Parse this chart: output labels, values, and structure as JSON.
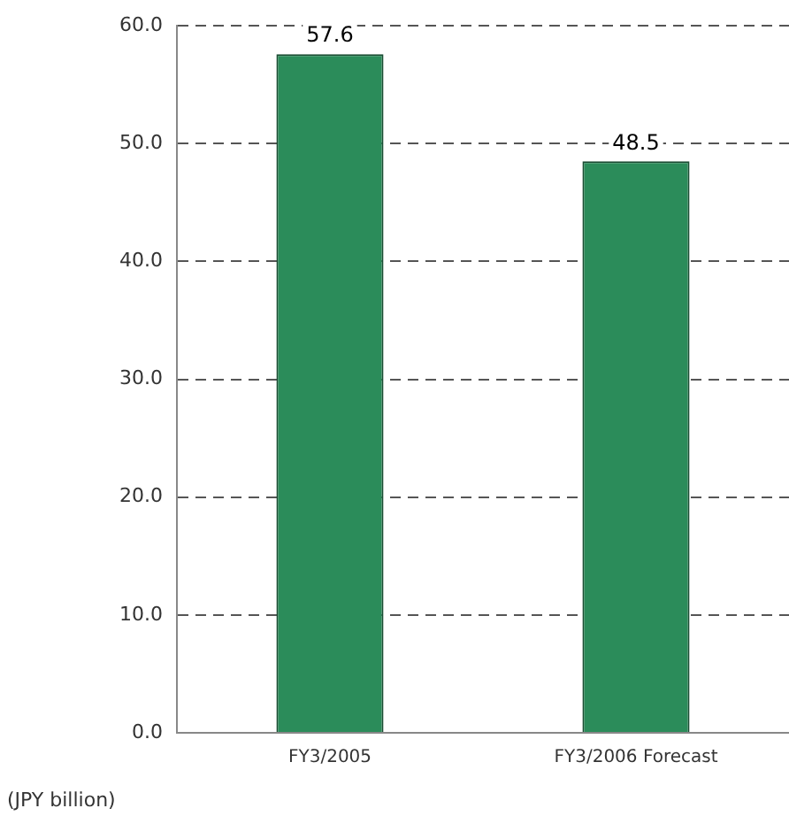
{
  "chart_data": {
    "type": "bar",
    "categories": [
      "FY3/2005",
      "FY3/2006 Forecast"
    ],
    "values": [
      57.6,
      48.5
    ],
    "color": "#2b8c5a",
    "ylabel": "(JPY billion)",
    "ylim": [
      0,
      60
    ],
    "yticks": [
      {
        "value": 0,
        "label": "0.0"
      },
      {
        "value": 10,
        "label": "10.0"
      },
      {
        "value": 20,
        "label": "20.0"
      },
      {
        "value": 30,
        "label": "30.0"
      },
      {
        "value": 40,
        "label": "40.0"
      },
      {
        "value": 50,
        "label": "50.0"
      },
      {
        "value": 60,
        "label": "60.0"
      }
    ],
    "grid": "y",
    "line_style": "dashed",
    "data_labels": true,
    "legend": false
  }
}
